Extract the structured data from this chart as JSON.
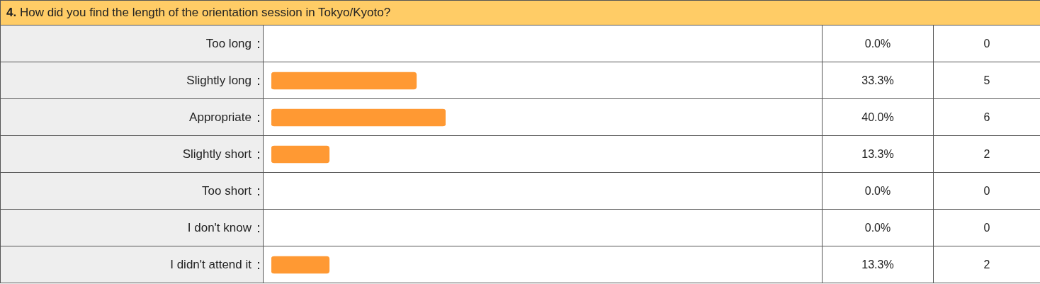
{
  "chart_data": {
    "type": "bar",
    "orientation": "horizontal",
    "title": "4. How did you find the length of the orientation session in Tokyo/Kyoto?",
    "categories": [
      "Too long",
      "Slightly long",
      "Appropriate",
      "Slightly short",
      "Too short",
      "I don't know",
      "I didn't attend it"
    ],
    "values": [
      0.0,
      33.3,
      40.0,
      13.3,
      0.0,
      0.0,
      13.3
    ],
    "value_labels": [
      "0.0%",
      "33.3%",
      "40.0%",
      "13.3%",
      "0.0%",
      "0.0%",
      "13.3%"
    ],
    "color": "#ff9933",
    "annotations": [
      "0",
      "5",
      "6",
      "2",
      "0",
      "0",
      "2"
    ]
  }
}
